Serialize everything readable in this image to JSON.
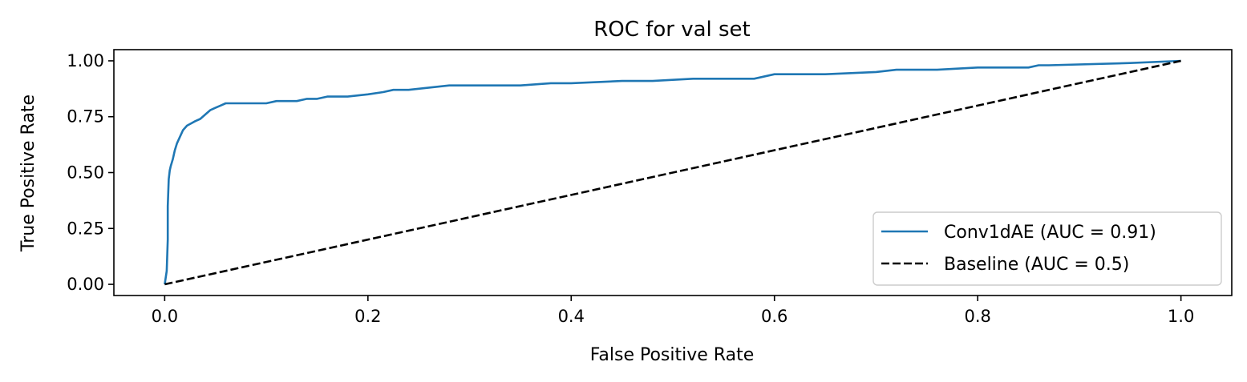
{
  "chart_data": {
    "type": "line",
    "title": "ROC for val set",
    "xlabel": "False Positive Rate",
    "ylabel": "True Positive Rate",
    "xlim": [
      -0.05,
      1.05
    ],
    "ylim": [
      -0.05,
      1.05
    ],
    "xticks": [
      0.0,
      0.2,
      0.4,
      0.6,
      0.8,
      1.0
    ],
    "xtick_labels": [
      "0.0",
      "0.2",
      "0.4",
      "0.6",
      "0.8",
      "1.0"
    ],
    "yticks": [
      0.0,
      0.25,
      0.5,
      0.75,
      1.0
    ],
    "ytick_labels": [
      "0.00",
      "0.25",
      "0.50",
      "0.75",
      "1.00"
    ],
    "grid": false,
    "legend_position": "lower-right",
    "series": [
      {
        "name": "Conv1dAE (AUC = 0.91)",
        "color": "#1f77b4",
        "style": "solid",
        "x": [
          0.0,
          0.002,
          0.003,
          0.003,
          0.004,
          0.005,
          0.006,
          0.008,
          0.01,
          0.012,
          0.015,
          0.018,
          0.022,
          0.026,
          0.03,
          0.035,
          0.04,
          0.045,
          0.05,
          0.055,
          0.06,
          0.07,
          0.08,
          0.09,
          0.1,
          0.11,
          0.12,
          0.13,
          0.14,
          0.15,
          0.16,
          0.17,
          0.18,
          0.2,
          0.215,
          0.225,
          0.24,
          0.26,
          0.28,
          0.3,
          0.35,
          0.38,
          0.4,
          0.45,
          0.48,
          0.52,
          0.58,
          0.6,
          0.65,
          0.7,
          0.72,
          0.76,
          0.8,
          0.85,
          0.86,
          0.87,
          0.95,
          1.0
        ],
        "y": [
          0.0,
          0.06,
          0.2,
          0.35,
          0.47,
          0.51,
          0.53,
          0.56,
          0.6,
          0.63,
          0.66,
          0.69,
          0.71,
          0.72,
          0.73,
          0.74,
          0.76,
          0.78,
          0.79,
          0.8,
          0.81,
          0.81,
          0.81,
          0.81,
          0.81,
          0.82,
          0.82,
          0.82,
          0.83,
          0.83,
          0.84,
          0.84,
          0.84,
          0.85,
          0.86,
          0.87,
          0.87,
          0.88,
          0.89,
          0.89,
          0.89,
          0.9,
          0.9,
          0.91,
          0.91,
          0.92,
          0.92,
          0.94,
          0.94,
          0.95,
          0.96,
          0.96,
          0.97,
          0.97,
          0.98,
          0.98,
          0.99,
          1.0
        ]
      },
      {
        "name": "Baseline (AUC = 0.5)",
        "color": "#000000",
        "style": "dashed",
        "x": [
          0.0,
          1.0
        ],
        "y": [
          0.0,
          1.0
        ]
      }
    ]
  }
}
